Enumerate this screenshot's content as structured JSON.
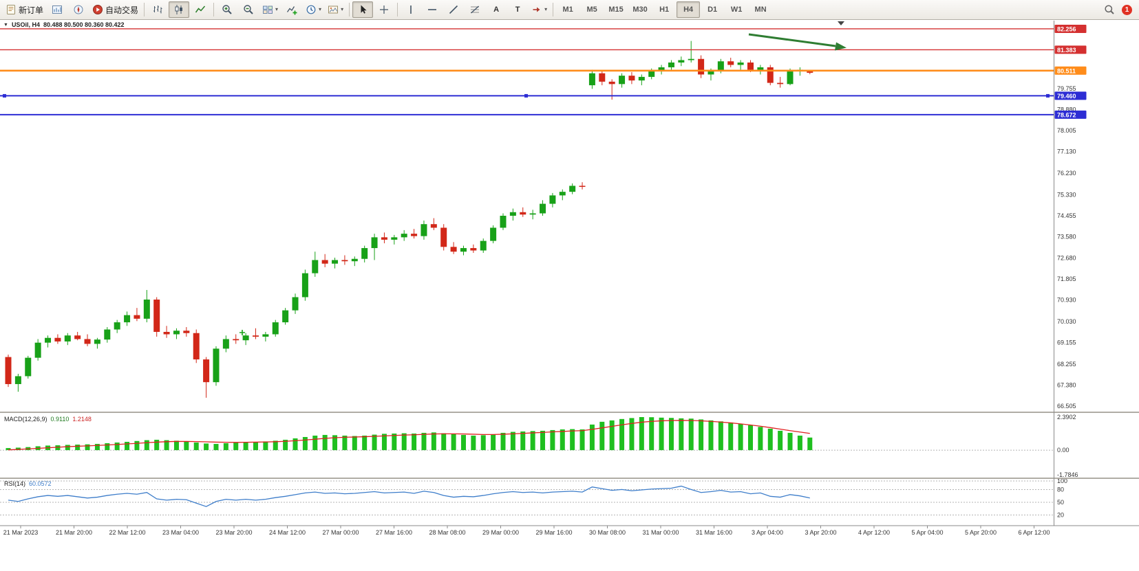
{
  "toolbar": {
    "new_order_label": "新订单",
    "autotrading_label": "自动交易",
    "timeframes": [
      "M1",
      "M5",
      "M15",
      "M30",
      "H1",
      "H4",
      "D1",
      "W1",
      "MN"
    ],
    "active_timeframe": "H4",
    "notification_count": "1"
  },
  "chart": {
    "symbol_period": "USOil, H4",
    "ohlc_text": "80.488 80.500 80.360 80.422"
  },
  "chart_data": {
    "type": "candlestick",
    "symbol": "USOil",
    "period": "H4",
    "current_bar": {
      "open": 80.488,
      "high": 80.5,
      "low": 80.36,
      "close": 80.422
    },
    "up_color": "#18a118",
    "down_color": "#d22718",
    "arrow_color": "#2f7d32",
    "price_axis": {
      "min": 66.3,
      "max": 82.6,
      "ticks": [
        79.755,
        78.88,
        78.005,
        77.13,
        76.23,
        75.33,
        74.455,
        73.58,
        72.68,
        71.805,
        70.93,
        70.03,
        69.155,
        68.255,
        67.38,
        66.505
      ]
    },
    "price_labels": [
      {
        "value": "82.256",
        "price": 82.256,
        "color": "#d43030"
      },
      {
        "value": "81.383",
        "price": 81.383,
        "color": "#d43030"
      },
      {
        "value": "80.511",
        "price": 80.511,
        "color": "#ff8c1a"
      },
      {
        "value": "79.460",
        "price": 79.46,
        "color": "#2d2dd4"
      },
      {
        "value": "78.672",
        "price": 78.672,
        "color": "#2d2dd4"
      }
    ],
    "hlines": [
      {
        "price": 82.256,
        "color": "#d43030",
        "width": 1.4,
        "handles": false
      },
      {
        "price": 81.383,
        "color": "#d43030",
        "width": 1.4,
        "handles": false
      },
      {
        "price": 80.511,
        "color": "#ff8c1a",
        "width": 2.6,
        "handles": false
      },
      {
        "price": 79.46,
        "color": "#2d2dd4",
        "width": 2.0,
        "handles": true
      },
      {
        "price": 78.672,
        "color": "#2d2dd4",
        "width": 2.0,
        "handles": false
      }
    ],
    "time_labels": [
      "21 Mar 2023",
      "21 Mar 20:00",
      "22 Mar 12:00",
      "23 Mar 04:00",
      "23 Mar 20:00",
      "24 Mar 12:00",
      "27 Mar 00:00",
      "27 Mar 16:00",
      "28 Mar 08:00",
      "29 Mar 00:00",
      "29 Mar 16:00",
      "30 Mar 08:00",
      "31 Mar 00:00",
      "31 Mar 16:00",
      "3 Apr 04:00",
      "3 Apr 20:00",
      "4 Apr 12:00",
      "5 Apr 04:00",
      "5 Apr 20:00",
      "6 Apr 12:00"
    ],
    "candles": [
      [
        68.55,
        68.65,
        67.3,
        67.42
      ],
      [
        67.42,
        67.85,
        67.1,
        67.75
      ],
      [
        67.75,
        68.6,
        67.65,
        68.52
      ],
      [
        68.52,
        69.3,
        68.4,
        69.15
      ],
      [
        69.15,
        69.45,
        68.95,
        69.35
      ],
      [
        69.35,
        69.5,
        69.1,
        69.2
      ],
      [
        69.2,
        69.55,
        69.05,
        69.45
      ],
      [
        69.45,
        69.6,
        69.25,
        69.3
      ],
      [
        69.3,
        69.5,
        69.0,
        69.1
      ],
      [
        69.1,
        69.35,
        68.9,
        69.28
      ],
      [
        69.28,
        69.8,
        69.15,
        69.7
      ],
      [
        69.7,
        70.1,
        69.55,
        70.0
      ],
      [
        70.0,
        70.45,
        69.85,
        70.3
      ],
      [
        70.3,
        70.6,
        70.05,
        70.15
      ],
      [
        70.15,
        71.35,
        70.0,
        70.95
      ],
      [
        70.95,
        71.05,
        69.4,
        69.6
      ],
      [
        69.6,
        69.85,
        69.35,
        69.5
      ],
      [
        69.5,
        69.75,
        69.3,
        69.65
      ],
      [
        69.65,
        69.8,
        69.4,
        69.55
      ],
      [
        69.55,
        69.7,
        68.3,
        68.45
      ],
      [
        68.45,
        68.55,
        66.85,
        67.5
      ],
      [
        67.5,
        69.0,
        67.35,
        68.9
      ],
      [
        68.9,
        69.45,
        68.75,
        69.3
      ],
      [
        69.3,
        69.5,
        69.1,
        69.25
      ],
      [
        69.25,
        69.55,
        69.05,
        69.45
      ],
      [
        69.45,
        69.75,
        69.3,
        69.4
      ],
      [
        69.4,
        69.6,
        69.2,
        69.5
      ],
      [
        69.5,
        70.1,
        69.4,
        70.0
      ],
      [
        70.0,
        70.6,
        69.9,
        70.5
      ],
      [
        70.5,
        71.2,
        70.35,
        71.05
      ],
      [
        71.05,
        72.2,
        70.9,
        72.05
      ],
      [
        72.05,
        72.95,
        71.9,
        72.6
      ],
      [
        72.6,
        72.85,
        72.3,
        72.45
      ],
      [
        72.45,
        72.7,
        72.25,
        72.6
      ],
      [
        72.6,
        72.8,
        72.4,
        72.55
      ],
      [
        72.55,
        72.75,
        72.35,
        72.65
      ],
      [
        72.65,
        73.2,
        72.5,
        73.1
      ],
      [
        73.1,
        73.7,
        72.6,
        73.55
      ],
      [
        73.55,
        73.75,
        73.3,
        73.45
      ],
      [
        73.45,
        73.65,
        73.25,
        73.55
      ],
      [
        73.55,
        73.85,
        73.4,
        73.7
      ],
      [
        73.7,
        73.9,
        73.5,
        73.6
      ],
      [
        73.6,
        74.25,
        73.45,
        74.1
      ],
      [
        74.1,
        74.35,
        73.85,
        73.95
      ],
      [
        73.95,
        74.1,
        73.0,
        73.15
      ],
      [
        73.15,
        73.35,
        72.85,
        72.95
      ],
      [
        72.95,
        73.2,
        72.8,
        73.1
      ],
      [
        73.1,
        73.25,
        72.9,
        73.0
      ],
      [
        73.0,
        73.5,
        72.9,
        73.4
      ],
      [
        73.4,
        74.05,
        73.3,
        73.95
      ],
      [
        73.95,
        74.55,
        73.85,
        74.45
      ],
      [
        74.45,
        74.75,
        74.25,
        74.6
      ],
      [
        74.6,
        74.8,
        74.4,
        74.5
      ],
      [
        74.5,
        74.7,
        74.3,
        74.55
      ],
      [
        74.55,
        75.1,
        74.45,
        74.95
      ],
      [
        74.95,
        75.4,
        74.8,
        75.3
      ],
      [
        75.3,
        75.55,
        75.1,
        75.45
      ],
      [
        75.45,
        75.8,
        75.35,
        75.7
      ],
      [
        75.7,
        75.85,
        75.55,
        75.67
      ],
      [
        79.9,
        80.55,
        79.75,
        80.4
      ],
      [
        80.4,
        80.5,
        79.9,
        80.05
      ],
      [
        80.05,
        80.15,
        79.3,
        79.95
      ],
      [
        79.95,
        80.4,
        79.8,
        80.3
      ],
      [
        80.3,
        80.45,
        79.95,
        80.1
      ],
      [
        80.1,
        80.35,
        79.9,
        80.25
      ],
      [
        80.25,
        80.6,
        80.15,
        80.5
      ],
      [
        80.5,
        80.75,
        80.35,
        80.65
      ],
      [
        80.65,
        80.95,
        80.55,
        80.85
      ],
      [
        80.85,
        81.1,
        80.7,
        80.95
      ],
      [
        80.95,
        81.75,
        80.85,
        81.0
      ],
      [
        81.0,
        81.15,
        80.2,
        80.35
      ],
      [
        80.35,
        80.6,
        80.1,
        80.5
      ],
      [
        80.5,
        81.0,
        80.4,
        80.9
      ],
      [
        80.9,
        81.05,
        80.65,
        80.75
      ],
      [
        80.75,
        80.95,
        80.55,
        80.85
      ],
      [
        80.85,
        80.95,
        80.45,
        80.55
      ],
      [
        80.55,
        80.75,
        80.35,
        80.65
      ],
      [
        80.65,
        80.75,
        79.9,
        80.0
      ],
      [
        80.0,
        80.25,
        79.8,
        79.95
      ],
      [
        79.95,
        80.6,
        79.9,
        80.5
      ],
      [
        80.5,
        80.65,
        80.3,
        80.55
      ],
      [
        80.488,
        80.5,
        80.36,
        80.422
      ]
    ],
    "macd": {
      "label": "MACD(12,26,9)",
      "main_value": "0.9110",
      "signal_value": "1.2148",
      "scale_max": 2.3902,
      "scale_min": -1.7846,
      "axis_labels": [
        "2.3902",
        "0.00",
        "-1.7846"
      ],
      "histogram_color": "#1fbf1f",
      "signal_color": "#e02020",
      "histogram": [
        0.15,
        0.18,
        0.22,
        0.28,
        0.33,
        0.35,
        0.38,
        0.4,
        0.42,
        0.45,
        0.5,
        0.55,
        0.6,
        0.66,
        0.72,
        0.75,
        0.72,
        0.68,
        0.62,
        0.55,
        0.48,
        0.45,
        0.5,
        0.55,
        0.58,
        0.6,
        0.63,
        0.68,
        0.75,
        0.85,
        0.95,
        1.05,
        1.1,
        1.08,
        1.05,
        1.02,
        1.05,
        1.12,
        1.18,
        1.2,
        1.22,
        1.2,
        1.25,
        1.28,
        1.22,
        1.15,
        1.1,
        1.05,
        1.08,
        1.15,
        1.25,
        1.32,
        1.35,
        1.38,
        1.4,
        1.45,
        1.5,
        1.52,
        1.5,
        1.85,
        2.05,
        2.15,
        2.25,
        2.32,
        2.39,
        2.38,
        2.35,
        2.33,
        2.3,
        2.28,
        2.22,
        2.15,
        2.08,
        2.0,
        1.9,
        1.8,
        1.68,
        1.55,
        1.4,
        1.25,
        1.05,
        0.91
      ],
      "signal": [
        0.02,
        0.05,
        0.09,
        0.13,
        0.17,
        0.21,
        0.25,
        0.28,
        0.31,
        0.34,
        0.37,
        0.41,
        0.45,
        0.49,
        0.54,
        0.58,
        0.61,
        0.63,
        0.63,
        0.62,
        0.6,
        0.58,
        0.57,
        0.56,
        0.57,
        0.58,
        0.59,
        0.61,
        0.64,
        0.68,
        0.73,
        0.79,
        0.85,
        0.9,
        0.93,
        0.95,
        0.97,
        1.0,
        1.03,
        1.06,
        1.09,
        1.11,
        1.14,
        1.17,
        1.18,
        1.18,
        1.17,
        1.15,
        1.13,
        1.13,
        1.15,
        1.18,
        1.21,
        1.25,
        1.28,
        1.32,
        1.35,
        1.39,
        1.41,
        1.5,
        1.61,
        1.72,
        1.83,
        1.93,
        2.02,
        2.08,
        2.12,
        2.14,
        2.15,
        2.14,
        2.12,
        2.08,
        2.03,
        1.97,
        1.9,
        1.82,
        1.73,
        1.63,
        1.52,
        1.41,
        1.31,
        1.21
      ]
    },
    "rsi": {
      "label": "RSI(14)",
      "value": "60.0572",
      "color": "#3d7dca",
      "levels": [
        100,
        80,
        50,
        20
      ],
      "values": [
        55,
        52,
        58,
        63,
        66,
        64,
        66,
        63,
        60,
        62,
        66,
        69,
        71,
        69,
        73,
        58,
        55,
        57,
        56,
        48,
        40,
        52,
        57,
        55,
        57,
        55,
        57,
        61,
        64,
        68,
        72,
        74,
        71,
        72,
        70,
        71,
        73,
        75,
        72,
        73,
        74,
        71,
        76,
        73,
        66,
        62,
        64,
        63,
        66,
        70,
        73,
        75,
        73,
        74,
        72,
        74,
        75,
        76,
        74,
        86,
        82,
        78,
        80,
        77,
        79,
        81,
        82,
        83,
        88,
        80,
        73,
        75,
        78,
        74,
        75,
        70,
        72,
        64,
        62,
        68,
        65,
        60
      ]
    }
  }
}
